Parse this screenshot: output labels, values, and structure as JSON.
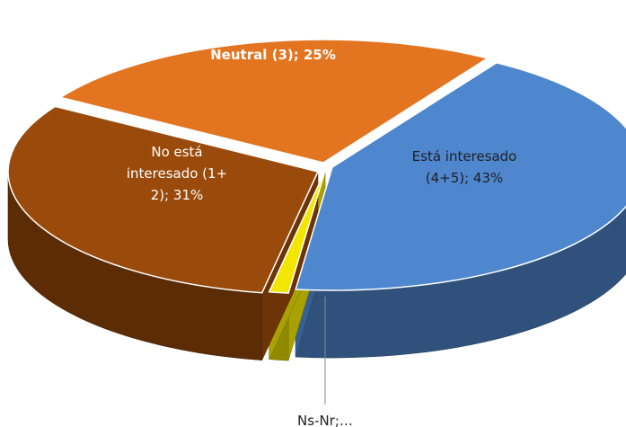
{
  "chart_data": {
    "type": "pie",
    "style": "3d-exploded",
    "title": "",
    "slices": [
      {
        "key": "interesado",
        "label_lines": [
          "Está interesado",
          "(4+5); 43%"
        ],
        "value": 43,
        "color": "#4f87cf"
      },
      {
        "key": "nsnr",
        "label_lines": [
          "Ns-Nr;…"
        ],
        "value": 1,
        "color": "#f2e600"
      },
      {
        "key": "no",
        "label_lines": [
          "No está",
          "interesado (1+",
          "2); 31%"
        ],
        "value": 31,
        "color": "#9a4a0a"
      },
      {
        "key": "neutral",
        "label_lines": [
          "Neutral (3); 25%"
        ],
        "value": 25,
        "color": "#e37420",
        "bold": true
      }
    ]
  }
}
